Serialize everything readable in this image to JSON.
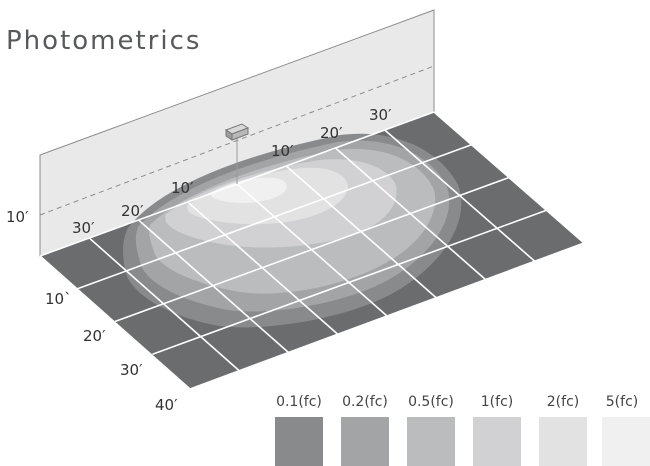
{
  "title": "Photometrics",
  "wall": {
    "height_label": "10′"
  },
  "fixture": {
    "icon": "wall-pack-fixture"
  },
  "wall_axis_labels": [
    "30′",
    "20′",
    "10′",
    "10′",
    "20′",
    "30′"
  ],
  "depth_axis_labels": [
    "10`",
    "20′",
    "30′",
    "40′"
  ],
  "legend": [
    {
      "label": "0.1(fc)",
      "color": "#898a8c"
    },
    {
      "label": "0.2(fc)",
      "color": "#a3a4a6"
    },
    {
      "label": "0.5(fc)",
      "color": "#bbbcbe"
    },
    {
      "label": "1(fc)",
      "color": "#d1d1d3"
    },
    {
      "label": "2(fc)",
      "color": "#e2e2e3"
    },
    {
      "label": "5(fc)",
      "color": "#f0f0f1"
    }
  ],
  "colors": {
    "floor": "#6b6c6e",
    "grid_line": "#ffffff",
    "wall": "#e9e9e9",
    "text": "#333333"
  }
}
